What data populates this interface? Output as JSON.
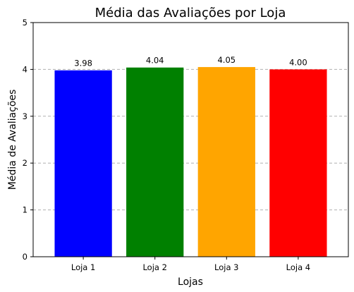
{
  "chart_data": {
    "type": "bar",
    "title": "Média das Avaliações por Loja",
    "xlabel": "Lojas",
    "ylabel": "Média de Avaliações",
    "categories": [
      "Loja 1",
      "Loja 2",
      "Loja 3",
      "Loja 4"
    ],
    "values": [
      3.98,
      4.04,
      4.05,
      4.0
    ],
    "data_labels": [
      "3.98",
      "4.04",
      "4.05",
      "4.00"
    ],
    "colors": [
      "#0000ff",
      "#008000",
      "#ffa500",
      "#ff0000"
    ],
    "ylim": [
      0,
      5
    ],
    "yticks": [
      "0",
      "1",
      "2",
      "3",
      "4",
      "5"
    ],
    "grid": "y-dashed",
    "grid_color": "#b0b0b0",
    "legend": "none"
  }
}
